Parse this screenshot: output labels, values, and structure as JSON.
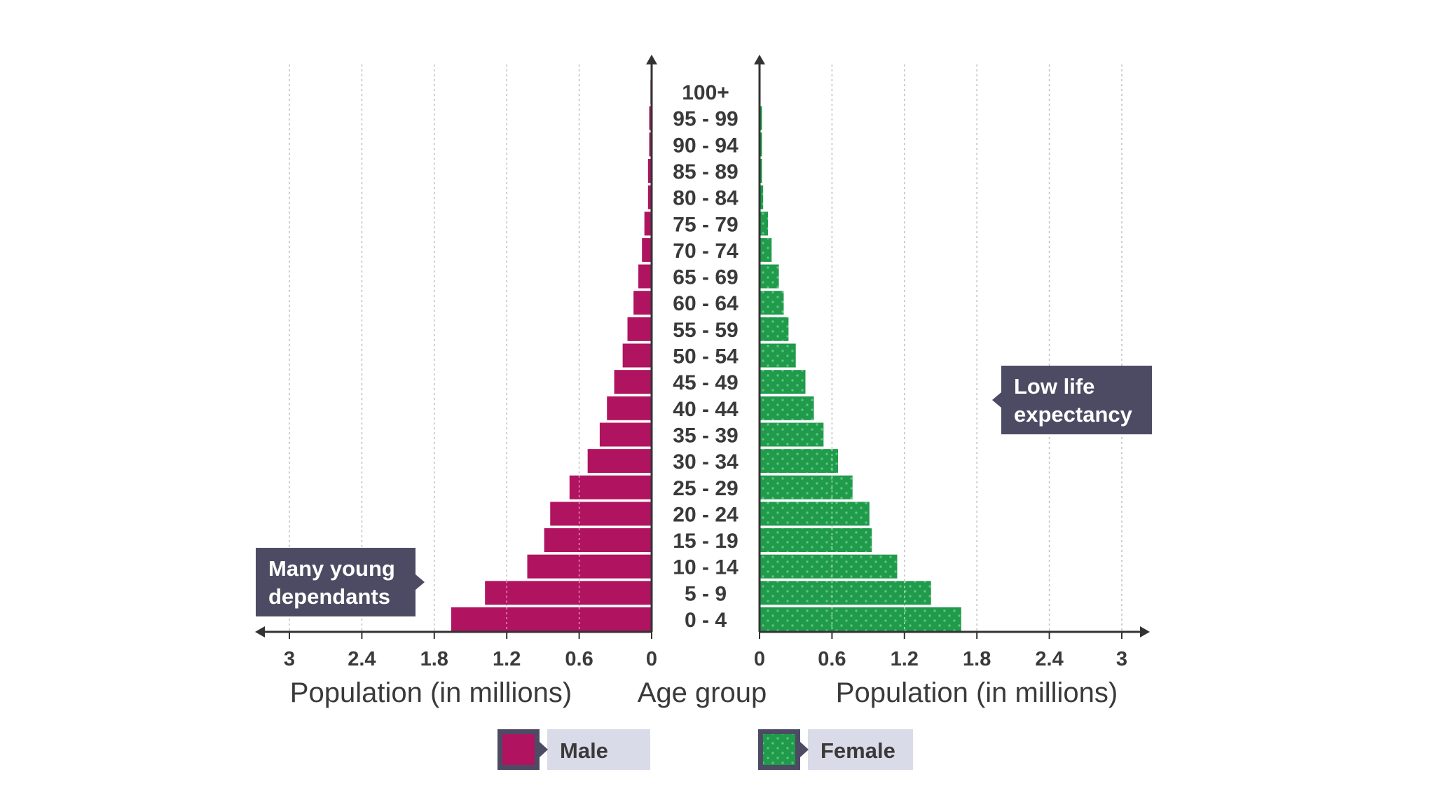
{
  "chart_data": {
    "type": "bar",
    "categories": [
      "0 - 4",
      "5 - 9",
      "10 - 14",
      "15 - 19",
      "20 - 24",
      "25 - 29",
      "30 - 34",
      "35 - 39",
      "40 - 44",
      "45 - 49",
      "50 - 54",
      "55 - 59",
      "60 - 64",
      "65 - 69",
      "70 - 74",
      "75 - 79",
      "80 - 84",
      "85 - 89",
      "90 - 94",
      "95 - 99",
      "100+"
    ],
    "series": [
      {
        "name": "Male",
        "values": [
          1.66,
          1.38,
          1.03,
          0.89,
          0.84,
          0.68,
          0.53,
          0.43,
          0.37,
          0.31,
          0.24,
          0.2,
          0.15,
          0.11,
          0.08,
          0.06,
          0.03,
          0.03,
          0.02,
          0.02,
          0.01
        ]
      },
      {
        "name": "Female",
        "values": [
          1.67,
          1.42,
          1.14,
          0.93,
          0.91,
          0.77,
          0.65,
          0.53,
          0.45,
          0.38,
          0.3,
          0.24,
          0.2,
          0.16,
          0.1,
          0.07,
          0.03,
          0.02,
          0.02,
          0.02,
          0.0
        ]
      }
    ],
    "x_ticks": [
      "3",
      "2.4",
      "1.8",
      "1.2",
      "0.6",
      "0"
    ],
    "x_tick_values": [
      3,
      2.4,
      1.8,
      1.2,
      0.6,
      0
    ],
    "right_ticks": [
      "0",
      "0.6",
      "1.2",
      "1.8",
      "2.4",
      "3"
    ],
    "right_tick_values": [
      0,
      0.6,
      1.2,
      1.8,
      2.4,
      3
    ],
    "xlim": [
      0,
      3
    ],
    "xlabel_left": "Population (in millions)",
    "xlabel_center": "Age group",
    "xlabel_right": "Population (in millions)",
    "grid": true,
    "legend": {
      "placement": "bottom-center",
      "items": [
        "Male",
        "Female"
      ]
    },
    "annotations": {
      "left": [
        "Many young",
        "dependants"
      ],
      "right": [
        "Low life",
        "expectancy"
      ]
    },
    "colors": {
      "male": "#b0135f",
      "female": "#1f9b4b",
      "female_dot": "#5fc27c",
      "note_bg": "#4d4b63",
      "legend_bg": "#dadbe8",
      "axis": "#333333",
      "grid": "#c4c4c4"
    }
  }
}
